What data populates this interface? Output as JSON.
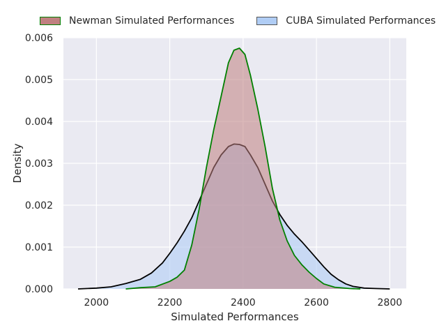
{
  "chart_data": {
    "type": "area",
    "xlabel": "Simulated Performances",
    "ylabel": "Density",
    "xlim": [
      1910,
      2845
    ],
    "ylim": [
      0,
      0.006
    ],
    "x_ticks": [
      "2000",
      "2200",
      "2400",
      "2600",
      "2800"
    ],
    "y_ticks": [
      "0.000",
      "0.001",
      "0.002",
      "0.003",
      "0.004",
      "0.005",
      "0.006"
    ],
    "grid": true,
    "legend_position": "top",
    "series": [
      {
        "name": "Newman Simulated Performances",
        "fill_color": "#c08080",
        "line_color": "#008000",
        "x": [
          2080,
          2120,
          2160,
          2200,
          2220,
          2240,
          2260,
          2280,
          2300,
          2320,
          2340,
          2360,
          2375,
          2390,
          2405,
          2420,
          2440,
          2460,
          2480,
          2500,
          2520,
          2540,
          2560,
          2580,
          2600,
          2620,
          2650,
          2690,
          2720
        ],
        "y": [
          0.0,
          3e-05,
          5e-05,
          0.00018,
          0.00028,
          0.00045,
          0.00105,
          0.0019,
          0.0029,
          0.0038,
          0.0046,
          0.0054,
          0.0057,
          0.00575,
          0.0056,
          0.0051,
          0.0043,
          0.0034,
          0.0024,
          0.00165,
          0.00115,
          0.0008,
          0.00058,
          0.0004,
          0.00025,
          0.00012,
          4e-05,
          1e-05,
          0.0
        ]
      },
      {
        "name": "CUBA Simulated Performances",
        "fill_color": "#b0cdf5",
        "line_color": "#000000",
        "x": [
          1950,
          2000,
          2040,
          2080,
          2120,
          2150,
          2180,
          2200,
          2220,
          2240,
          2260,
          2280,
          2300,
          2320,
          2340,
          2360,
          2375,
          2390,
          2405,
          2420,
          2440,
          2460,
          2480,
          2500,
          2520,
          2540,
          2560,
          2580,
          2600,
          2620,
          2640,
          2660,
          2680,
          2700,
          2730,
          2760,
          2800
        ],
        "y": [
          0.0,
          2e-05,
          5e-05,
          0.00013,
          0.00023,
          0.00038,
          0.00062,
          0.00085,
          0.0011,
          0.00138,
          0.0017,
          0.0021,
          0.0025,
          0.0029,
          0.0032,
          0.0034,
          0.00346,
          0.00345,
          0.0034,
          0.0032,
          0.0029,
          0.0025,
          0.0021,
          0.00178,
          0.00152,
          0.00131,
          0.00113,
          0.00093,
          0.00073,
          0.00053,
          0.00035,
          0.00022,
          0.00012,
          6e-05,
          2e-05,
          1e-05,
          0.0
        ]
      }
    ]
  }
}
